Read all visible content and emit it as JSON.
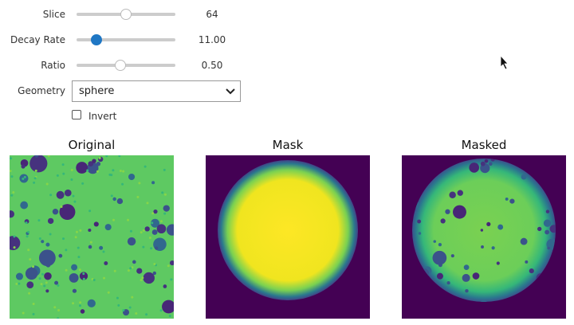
{
  "controls": {
    "sliders": [
      {
        "label": "Slice",
        "value": "64"
      },
      {
        "label": "Decay Rate",
        "value": "11.00"
      },
      {
        "label": "Ratio",
        "value": "0.50"
      }
    ],
    "geometry": {
      "label": "Geometry",
      "selected": "sphere"
    },
    "invert": {
      "label": "Invert"
    }
  },
  "panels": [
    {
      "title": "Original"
    },
    {
      "title": "Mask"
    },
    {
      "title": "Masked"
    }
  ]
}
